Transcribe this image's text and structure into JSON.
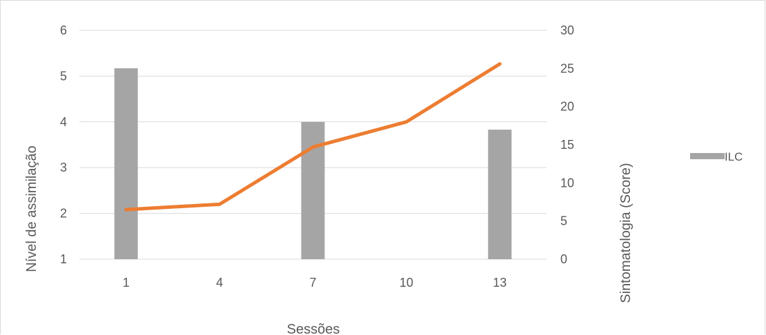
{
  "chart_data": {
    "type": "bar",
    "categories": [
      "1",
      "4",
      "7",
      "10",
      "13"
    ],
    "series": [
      {
        "name": "ILC",
        "kind": "bar",
        "axis": "left",
        "color": "#a5a5a5",
        "values": [
          5.17,
          null,
          4.0,
          null,
          3.83
        ]
      },
      {
        "kind": "line",
        "axis": "right",
        "color": "#ed7d31",
        "values": [
          6.5,
          7.2,
          14.7,
          18.0,
          25.6
        ]
      }
    ],
    "xlabel": "Sessões",
    "ylabel_left": "Nível de assimilação",
    "ylabel_right": "Sintomatologia (Score)",
    "ylim_left": [
      1,
      6
    ],
    "yticks_left": [
      "1",
      "2",
      "3",
      "4",
      "5",
      "6"
    ],
    "ylim_right": [
      0,
      30
    ],
    "yticks_right": [
      "0",
      "5",
      "10",
      "15",
      "20",
      "25",
      "30"
    ],
    "grid": true,
    "legend_position": "right",
    "legend": [
      {
        "label": "ILC",
        "color": "#a5a5a5"
      }
    ]
  }
}
